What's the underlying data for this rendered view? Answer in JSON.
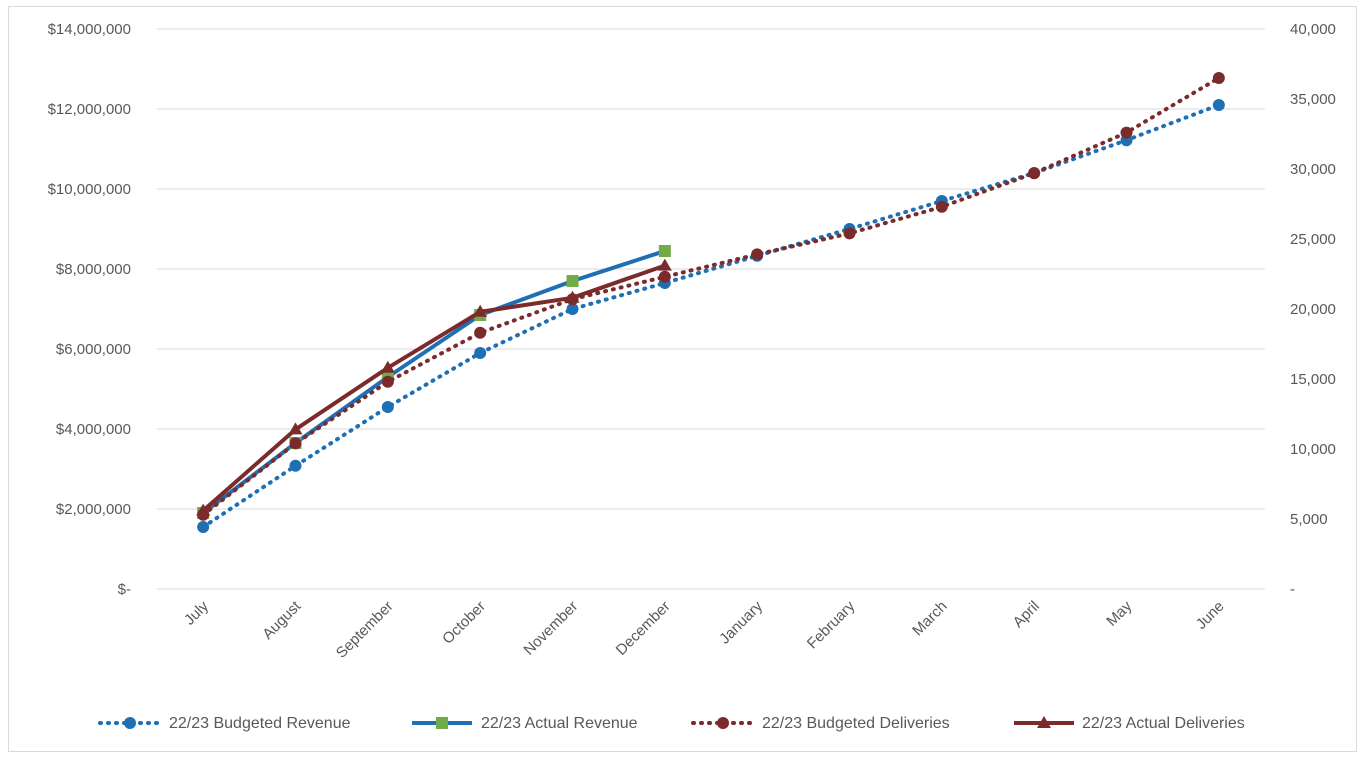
{
  "chart_data": {
    "type": "line",
    "categories": [
      "July",
      "August",
      "September",
      "October",
      "November",
      "December",
      "January",
      "February",
      "March",
      "April",
      "May",
      "June"
    ],
    "y_left": {
      "ticks": [
        "$14,000,000",
        "$12,000,000",
        "$10,000,000",
        "$8,000,000",
        "$6,000,000",
        "$4,000,000",
        "$2,000,000",
        "$-"
      ],
      "range": [
        0,
        14000000
      ]
    },
    "y_right": {
      "ticks": [
        "40,000",
        "35,000",
        "30,000",
        "25,000",
        "20,000",
        "15,000",
        "10,000",
        "5,000",
        "-"
      ],
      "range": [
        0,
        40000
      ]
    },
    "grid": true,
    "legend_position": "bottom",
    "series": [
      {
        "name": "22/23 Budgeted Revenue",
        "axis": "left",
        "style": "dotted",
        "marker": "circle",
        "color": "#1f6fb4",
        "values": [
          1550000,
          3080000,
          4550000,
          5900000,
          7000000,
          7650000,
          8330000,
          9000000,
          9700000,
          10400000,
          11220000,
          12100000
        ]
      },
      {
        "name": "22/23 Actual Revenue",
        "axis": "left",
        "style": "solid",
        "marker": "square",
        "color": "#1f6fb4",
        "marker_color": "#70ad47",
        "values": [
          1900000,
          3650000,
          5300000,
          6850000,
          7700000,
          8450000,
          null,
          null,
          null,
          null,
          null,
          null
        ]
      },
      {
        "name": "22/23 Budgeted Deliveries",
        "axis": "right",
        "style": "dotted",
        "marker": "circle",
        "color": "#7b2b2b",
        "values": [
          5300,
          10400,
          14800,
          18300,
          20700,
          22300,
          23900,
          25400,
          27300,
          29700,
          32600,
          36500
        ]
      },
      {
        "name": "22/23 Actual Deliveries",
        "axis": "right",
        "style": "solid",
        "marker": "triangle",
        "color": "#7b2b2b",
        "values": [
          5600,
          11400,
          15800,
          19800,
          20800,
          23100,
          null,
          null,
          null,
          null,
          null,
          null
        ]
      }
    ]
  }
}
